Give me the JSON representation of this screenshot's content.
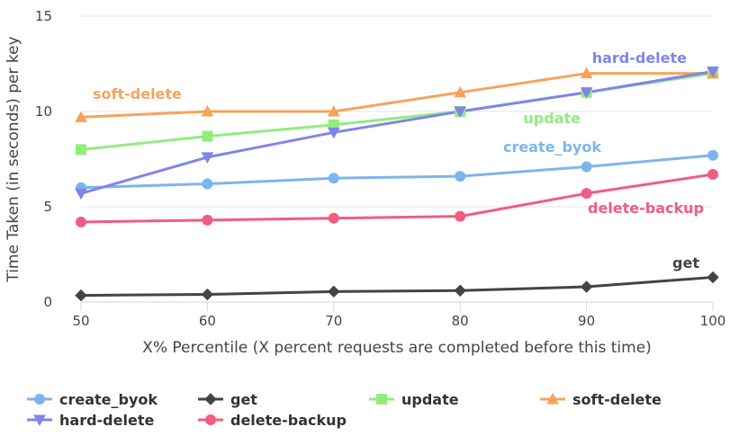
{
  "chart_data": {
    "type": "line",
    "xlabel": "X% Percentile (X percent requests are completed before this time)",
    "ylabel": "Time Taken (in seconds) per key",
    "x": [
      50,
      60,
      70,
      80,
      90,
      100
    ],
    "x_ticks": [
      "50",
      "60",
      "70",
      "80",
      "90",
      "100"
    ],
    "y_ticks": [
      "0",
      "5",
      "10",
      "15"
    ],
    "xlim": [
      50,
      100
    ],
    "ylim": [
      0,
      15
    ],
    "grid": "horizontal",
    "legend": "bottom",
    "series": [
      {
        "name": "create_byok",
        "color": "#7cb5ec",
        "marker": "circle",
        "values": [
          6.0,
          6.2,
          6.5,
          6.6,
          7.1,
          7.7
        ]
      },
      {
        "name": "get",
        "color": "#434348",
        "marker": "diamond",
        "values": [
          0.35,
          0.4,
          0.55,
          0.6,
          0.8,
          1.3
        ]
      },
      {
        "name": "update",
        "color": "#90ed7d",
        "marker": "square",
        "values": [
          8.0,
          8.7,
          9.3,
          10.0,
          11.0,
          12.0
        ]
      },
      {
        "name": "soft-delete",
        "color": "#f7a35c",
        "marker": "triangle",
        "values": [
          9.7,
          10.0,
          10.0,
          11.0,
          12.0,
          12.0
        ]
      },
      {
        "name": "hard-delete",
        "color": "#8085e9",
        "marker": "triangle-down",
        "values": [
          5.7,
          7.6,
          8.9,
          10.0,
          11.0,
          12.1
        ]
      },
      {
        "name": "delete-backup",
        "color": "#f15c80",
        "marker": "circle",
        "values": [
          4.2,
          4.3,
          4.4,
          4.5,
          5.7,
          6.7
        ]
      }
    ],
    "annotations": [
      {
        "text": "soft-delete",
        "series": "soft-delete"
      },
      {
        "text": "hard-delete",
        "series": "hard-delete"
      },
      {
        "text": "update",
        "series": "update"
      },
      {
        "text": "create_byok",
        "series": "create_byok"
      },
      {
        "text": "delete-backup",
        "series": "delete-backup"
      },
      {
        "text": "get",
        "series": "get"
      }
    ]
  }
}
